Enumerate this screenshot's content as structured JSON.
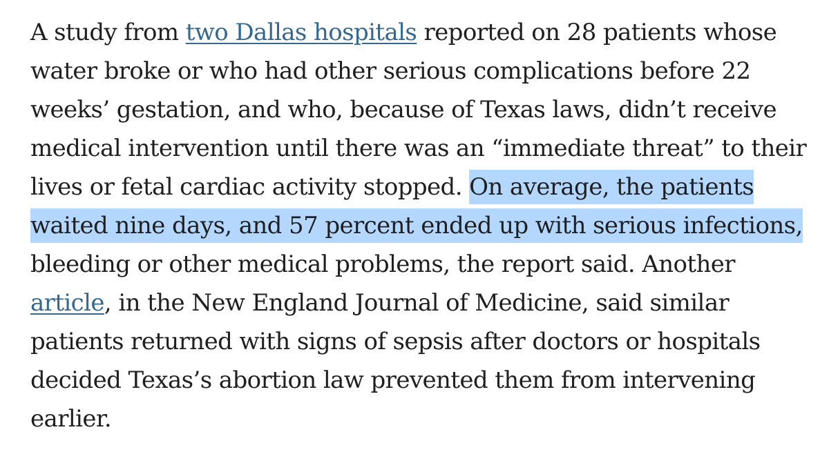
{
  "paragraph": {
    "link_dallas": "two Dallas hospitals",
    "link_article": "article",
    "lines": [
      {
        "before": "A study from ",
        "after": " reported on 28 patients whose"
      },
      {
        "text": "water broke or who had other serious complications before 22"
      },
      {
        "text": "weeks’ gestation, and who, because of Texas laws, didn’t receive"
      },
      {
        "text": "medical intervention until there was an “immediate threat” to their"
      },
      {
        "text": "lives or fetal cardiac activity stopped. ",
        "highlight": "On average, the patients"
      },
      {
        "highlight": "waited nine days, and 57 percent ended up with serious infections,"
      },
      {
        "text": "bleeding or other medical problems, the report said. Another"
      },
      {
        "after": ", in the New England Journal of Medicine, said similar"
      },
      {
        "text": "patients returned with signs of sepsis after doctors or hospitals"
      },
      {
        "text": "decided Texas’s abortion law prevented them from intervening"
      },
      {
        "text": "earlier."
      }
    ]
  },
  "colors": {
    "text": "#1f1f1f",
    "link": "#326891",
    "selection_highlight": "#b3d7ff",
    "background": "#ffffff"
  }
}
